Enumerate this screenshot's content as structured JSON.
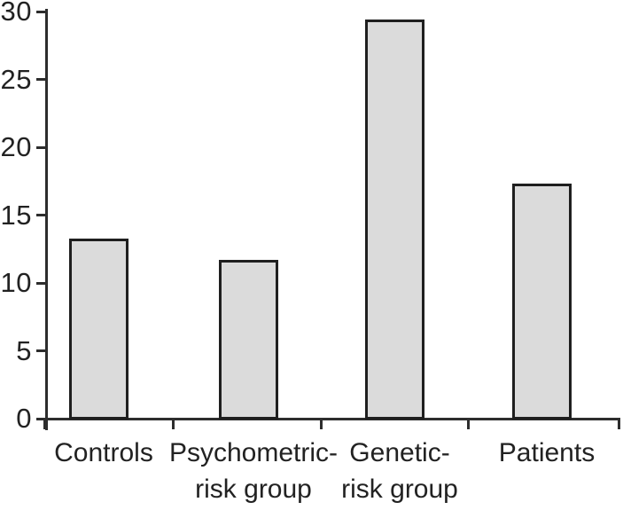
{
  "chart_data": {
    "type": "bar",
    "title": "",
    "xlabel": "",
    "ylabel": "",
    "categories": [
      "Controls",
      "Psychometric-risk group",
      "Genetic-risk group",
      "Patients"
    ],
    "category_label_lines": [
      [
        "Controls"
      ],
      [
        "Psychometric-",
        "risk group"
      ],
      [
        "Genetic-",
        "risk group"
      ],
      [
        "Patients"
      ]
    ],
    "values": [
      13.3,
      11.7,
      29.4,
      17.3
    ],
    "ylim": [
      0,
      30
    ],
    "y_ticks": [
      0,
      5,
      10,
      15,
      20,
      25,
      30
    ],
    "grid": false,
    "legend_position": "none",
    "colors": {
      "bar_fill": "#dbdbdb",
      "bar_border": "#1f1f1f",
      "axis": "#2d2d2d",
      "tick": "#2d2d2d",
      "text": "#222222",
      "background": "#ffffff"
    }
  }
}
